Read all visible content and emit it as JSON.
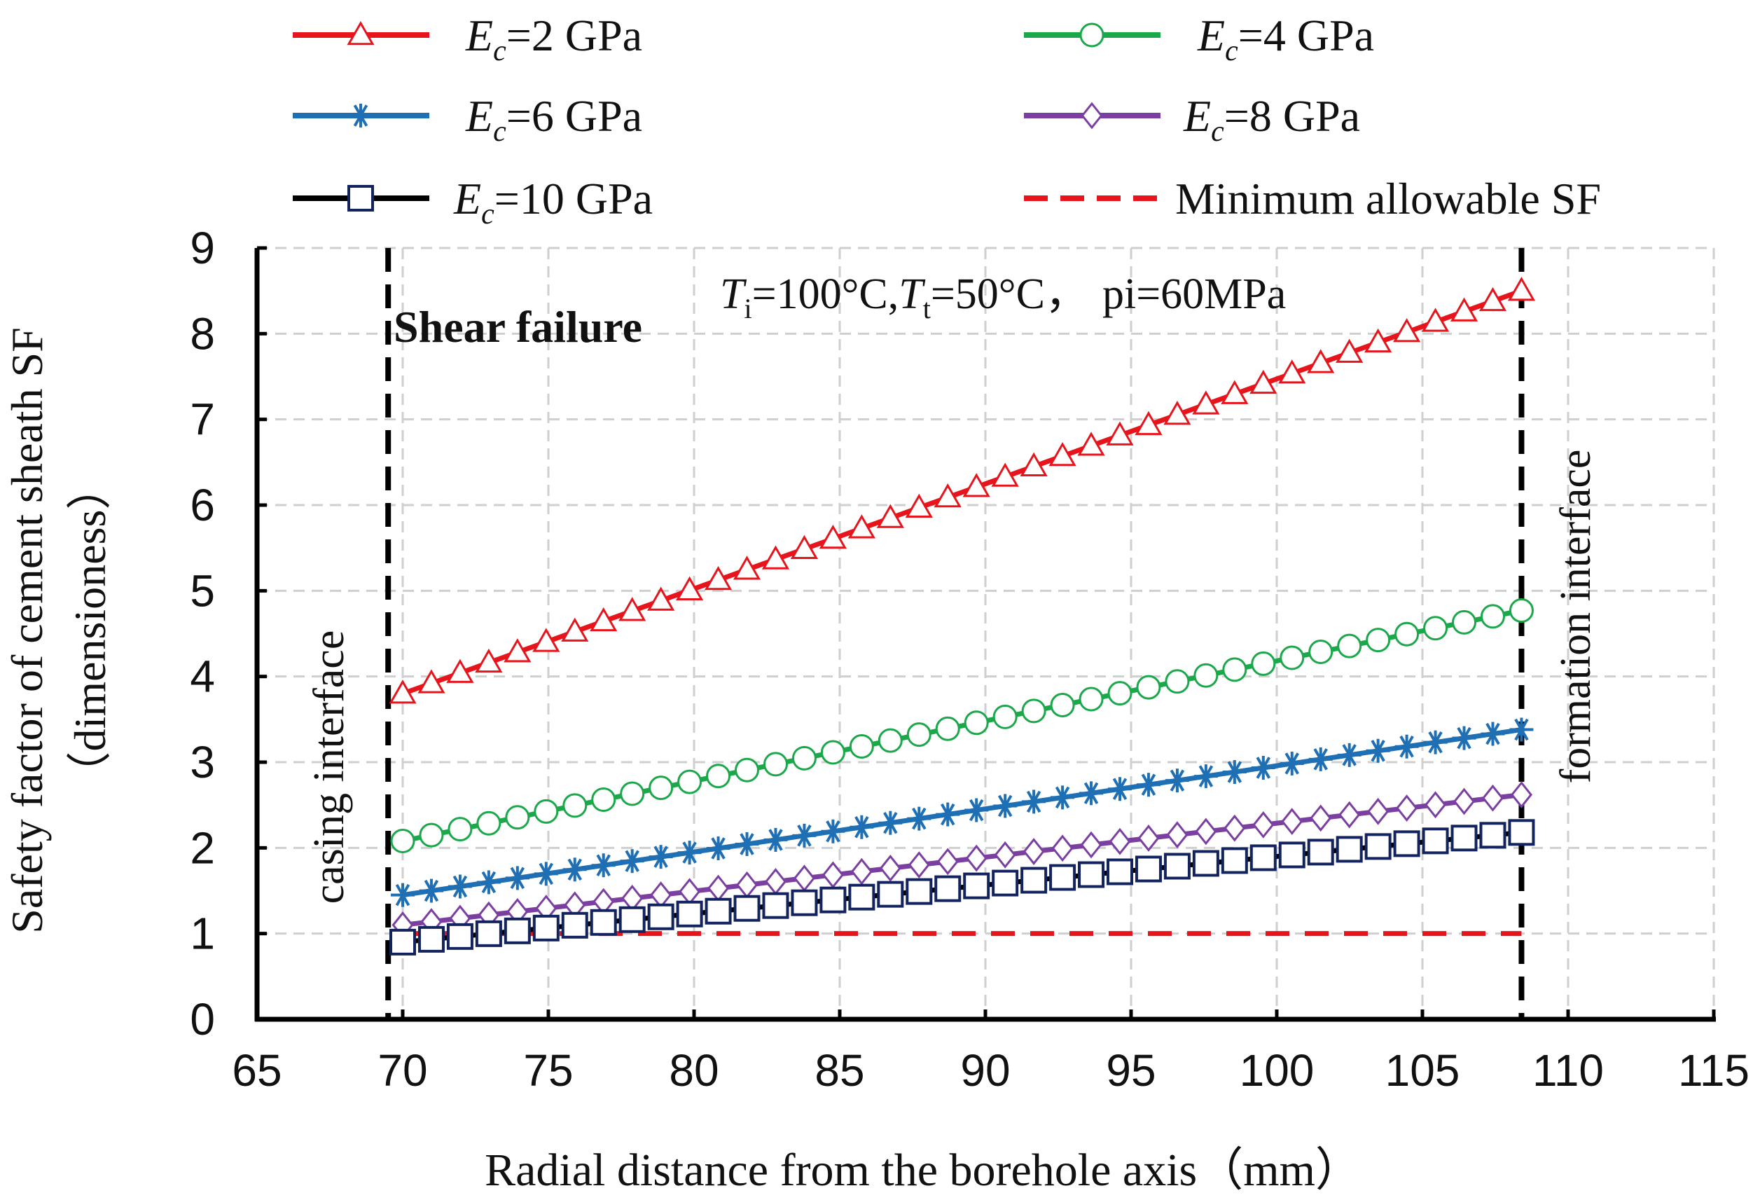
{
  "chart_data": {
    "type": "line",
    "title": "",
    "annotation_conditions": {
      "t_symbol": "T",
      "ti_sub": "i",
      "ti_val": "=100°C,",
      "tt_sub": "t",
      "tt_val": "=50°C，",
      "p_text": "pi=60MPa"
    },
    "shear_failure_label": "Shear failure",
    "casing_interface_label": "casing  interface",
    "formation_interface_label": "formation  interface",
    "xlabel": "Radial distance from  the borehole axis（mm）",
    "ylabel_line1": "Safety factor of cement sheath SF",
    "ylabel_line2": "（dimensioness）",
    "xlim": [
      65,
      115
    ],
    "ylim": [
      0,
      9
    ],
    "x_ticks": [
      "65",
      "70",
      "75",
      "80",
      "85",
      "90",
      "95",
      "100",
      "105",
      "110",
      "115"
    ],
    "y_ticks": [
      "0",
      "1",
      "2",
      "3",
      "4",
      "5",
      "6",
      "7",
      "8",
      "9"
    ],
    "grid": true,
    "vertical_interfaces": [
      69.5,
      108.4
    ],
    "x_start": 70,
    "x_end": 108.4,
    "n_points": 40,
    "series": [
      {
        "key": "e2",
        "legend_prefix": "E",
        "legend_sub": "c",
        "legend_suffix": "=2 GPa",
        "color": "#e8141c",
        "marker": "triangle",
        "y_start": 3.8,
        "y_end": 8.5
      },
      {
        "key": "e4",
        "legend_prefix": "E",
        "legend_sub": "c",
        "legend_suffix": "=4 GPa",
        "color": "#1aa84a",
        "marker": "circle",
        "y_start": 2.08,
        "y_end": 4.77
      },
      {
        "key": "e6",
        "legend_prefix": "E",
        "legend_sub": "c",
        "legend_suffix": "=6 GPa",
        "color": "#1f6fb5",
        "marker": "asterisk",
        "y_start": 1.45,
        "y_end": 3.38
      },
      {
        "key": "e8",
        "legend_prefix": "E",
        "legend_sub": "c",
        "legend_suffix": "=8 GPa",
        "color": "#7b3fa1",
        "marker": "diamond",
        "y_start": 1.1,
        "y_end": 2.62
      },
      {
        "key": "e10",
        "legend_prefix": "E",
        "legend_sub": "c",
        "legend_suffix": "=10 GPa",
        "color": "#000000",
        "marker": "square",
        "y_start": 0.9,
        "y_end": 2.18
      }
    ],
    "threshold": {
      "label": "Minimum allowable SF",
      "value": 1.0,
      "color": "#e8141c",
      "style": "dashed"
    },
    "legend_position": "top"
  }
}
